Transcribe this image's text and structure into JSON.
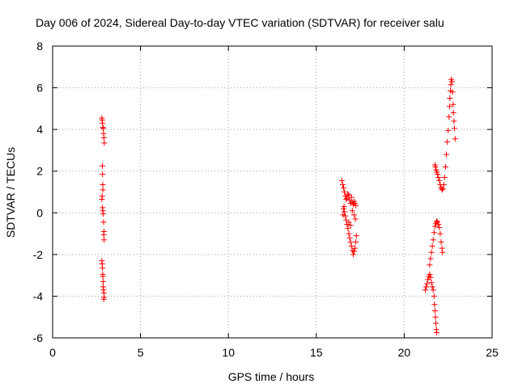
{
  "chart_data": {
    "type": "scatter",
    "title": "Day 006 of 2024, Sidereal Day-to-day VTEC variation (SDTVAR) for receiver salu",
    "xlabel": "GPS time / hours",
    "ylabel": "SDTVAR / TECUs",
    "xlim": [
      0,
      25
    ],
    "ylim": [
      -6,
      8
    ],
    "xticks": [
      "0",
      "5",
      "10",
      "15",
      "20",
      "25"
    ],
    "yticks": [
      "-6",
      "-4",
      "-2",
      "0",
      "2",
      "4",
      "6",
      "8"
    ],
    "grid": true,
    "marker": "+",
    "color": "#ff0000",
    "series": [
      {
        "values": [
          [
            2.8,
            4.55
          ],
          [
            2.82,
            4.45
          ],
          [
            2.84,
            4.3
          ],
          [
            2.86,
            4.1
          ],
          [
            2.88,
            4.05
          ],
          [
            2.9,
            3.8
          ],
          [
            2.92,
            3.6
          ],
          [
            2.94,
            3.35
          ],
          [
            2.83,
            2.25
          ],
          [
            2.84,
            1.85
          ],
          [
            2.85,
            1.35
          ],
          [
            2.86,
            1.1
          ],
          [
            2.82,
            0.8
          ],
          [
            2.8,
            0.65
          ],
          [
            2.84,
            0.25
          ],
          [
            2.86,
            0.1
          ],
          [
            2.88,
            -0.05
          ],
          [
            2.9,
            -0.45
          ],
          [
            2.92,
            -0.9
          ],
          [
            2.91,
            -1.05
          ],
          [
            2.93,
            -1.3
          ],
          [
            2.8,
            -2.3
          ],
          [
            2.82,
            -2.45
          ],
          [
            2.84,
            -2.65
          ],
          [
            2.85,
            -2.95
          ],
          [
            2.86,
            -3.05
          ],
          [
            2.87,
            -3.3
          ],
          [
            2.88,
            -3.55
          ],
          [
            2.9,
            -3.7
          ],
          [
            2.92,
            -3.85
          ],
          [
            2.93,
            -4.05
          ],
          [
            2.91,
            -4.15
          ],
          [
            16.45,
            1.55
          ],
          [
            16.5,
            1.35
          ],
          [
            16.55,
            1.2
          ],
          [
            16.6,
            1.0
          ],
          [
            16.65,
            0.8
          ],
          [
            16.7,
            0.65
          ],
          [
            16.75,
            0.7
          ],
          [
            16.8,
            0.9
          ],
          [
            16.85,
            0.85
          ],
          [
            16.9,
            0.6
          ],
          [
            16.95,
            0.45
          ],
          [
            17.0,
            0.75
          ],
          [
            17.05,
            0.5
          ],
          [
            17.1,
            0.4
          ],
          [
            17.15,
            0.55
          ],
          [
            17.2,
            0.45
          ],
          [
            17.25,
            0.35
          ],
          [
            16.55,
            0.2
          ],
          [
            16.6,
            0.05
          ],
          [
            16.65,
            -0.15
          ],
          [
            16.7,
            -0.35
          ],
          [
            16.75,
            -0.55
          ],
          [
            16.8,
            -0.75
          ],
          [
            16.85,
            -1.0
          ],
          [
            16.9,
            -1.2
          ],
          [
            16.95,
            -1.4
          ],
          [
            17.0,
            -1.6
          ],
          [
            17.05,
            -1.8
          ],
          [
            17.1,
            -2.0
          ],
          [
            17.15,
            -1.85
          ],
          [
            17.2,
            -1.7
          ],
          [
            17.25,
            -1.4
          ],
          [
            17.28,
            -1.1
          ],
          [
            16.85,
            -0.45
          ],
          [
            16.95,
            -0.6
          ],
          [
            17.05,
            0.1
          ],
          [
            17.15,
            -0.1
          ],
          [
            17.22,
            -0.3
          ],
          [
            16.52,
            -0.1
          ],
          [
            16.58,
            0.3
          ],
          [
            21.2,
            -3.7
          ],
          [
            21.25,
            -3.55
          ],
          [
            21.3,
            -3.4
          ],
          [
            21.35,
            -3.2
          ],
          [
            21.4,
            -3.05
          ],
          [
            21.45,
            -2.95
          ],
          [
            21.5,
            -3.1
          ],
          [
            21.55,
            -3.35
          ],
          [
            21.6,
            -3.55
          ],
          [
            21.65,
            -3.7
          ],
          [
            21.7,
            -4.0
          ],
          [
            21.72,
            -4.4
          ],
          [
            21.75,
            -4.7
          ],
          [
            21.78,
            -5.0
          ],
          [
            21.8,
            -5.3
          ],
          [
            21.83,
            -5.6
          ],
          [
            21.85,
            -5.75
          ],
          [
            21.45,
            -2.5
          ],
          [
            21.5,
            -2.2
          ],
          [
            21.55,
            -1.9
          ],
          [
            21.6,
            -1.6
          ],
          [
            21.65,
            -1.3
          ],
          [
            21.7,
            -0.95
          ],
          [
            21.75,
            -0.65
          ],
          [
            21.8,
            -0.5
          ],
          [
            21.85,
            -0.4
          ],
          [
            21.9,
            -0.45
          ],
          [
            21.95,
            -0.55
          ],
          [
            22.0,
            -0.7
          ],
          [
            22.05,
            -1.0
          ],
          [
            22.1,
            -1.4
          ],
          [
            22.15,
            -1.7
          ],
          [
            22.18,
            -1.9
          ],
          [
            21.75,
            2.3
          ],
          [
            21.78,
            2.2
          ],
          [
            21.82,
            2.05
          ],
          [
            21.86,
            1.95
          ],
          [
            21.9,
            1.85
          ],
          [
            21.95,
            1.7
          ],
          [
            22.0,
            1.55
          ],
          [
            22.05,
            1.35
          ],
          [
            22.1,
            1.2
          ],
          [
            22.15,
            1.1
          ],
          [
            22.2,
            1.15
          ],
          [
            22.25,
            1.35
          ],
          [
            22.3,
            1.7
          ],
          [
            22.35,
            2.2
          ],
          [
            22.4,
            2.8
          ],
          [
            22.45,
            3.4
          ],
          [
            22.5,
            3.95
          ],
          [
            22.55,
            4.6
          ],
          [
            22.58,
            5.1
          ],
          [
            22.6,
            5.5
          ],
          [
            22.63,
            5.85
          ],
          [
            22.65,
            6.15
          ],
          [
            22.68,
            6.4
          ],
          [
            22.72,
            6.3
          ],
          [
            22.75,
            5.8
          ],
          [
            22.78,
            5.2
          ],
          [
            22.8,
            4.8
          ],
          [
            22.83,
            4.4
          ],
          [
            22.86,
            4.05
          ],
          [
            22.9,
            3.55
          ]
        ]
      }
    ]
  }
}
